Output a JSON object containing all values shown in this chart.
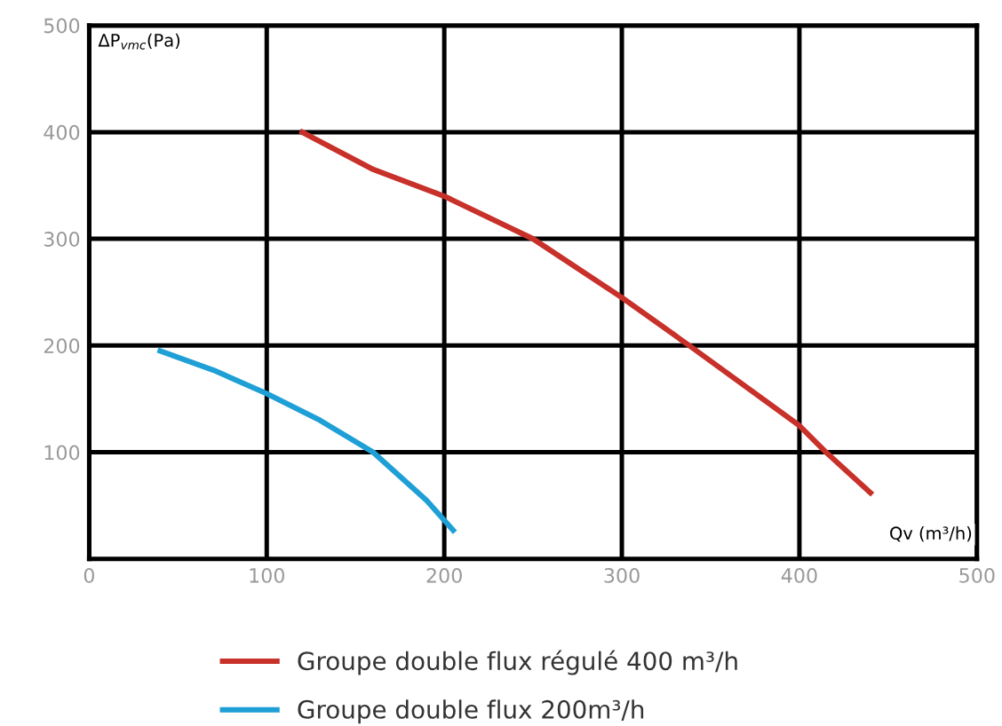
{
  "chart_data": {
    "type": "line",
    "xlabel": "Qv (m³/h)",
    "ylabel": "ΔP$_{vmc}$(Pa)",
    "series": [
      {
        "name": "Groupe double flux régulé 400 m³/h",
        "color": "#c8302a",
        "x": [
          120,
          160,
          200,
          250,
          300,
          338,
          400,
          415,
          440
        ],
        "values": [
          400,
          365,
          340,
          300,
          245,
          200,
          125,
          100,
          62
        ]
      },
      {
        "name": "Groupe double flux 200m³/h",
        "color": "#1e9fd6",
        "x": [
          40,
          70,
          100,
          130,
          160,
          190,
          205
        ],
        "values": [
          195,
          177,
          155,
          130,
          100,
          55,
          27
        ]
      }
    ],
    "xlim": [
      0,
      500
    ],
    "ylim": [
      0,
      500
    ],
    "xticks": [
      0,
      100,
      200,
      300,
      400,
      500
    ],
    "yticks": [
      100,
      200,
      300,
      400,
      500
    ],
    "grid": true,
    "legend": "bottom",
    "line_style": "solid",
    "marker": "none"
  }
}
